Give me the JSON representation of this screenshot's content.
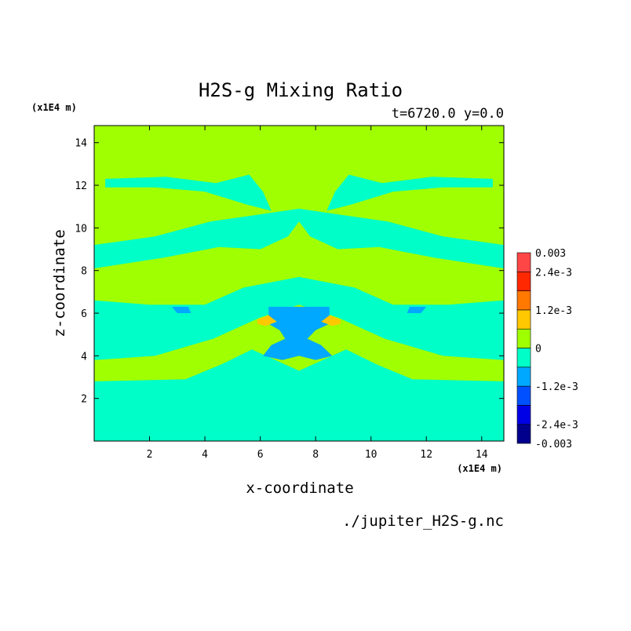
{
  "chart_data": {
    "type": "heatmap",
    "title": "H2S-g Mixing Ratio",
    "subtitle": "t=6720.0 y=0.0",
    "xlabel": "x-coordinate",
    "ylabel": "z-coordinate",
    "x_unit": "(x1E4 m)",
    "y_unit": "(x1E4 m)",
    "source_file": "./jupiter_H2S-g.nc",
    "xlim": [
      0,
      14.8
    ],
    "ylim": [
      0,
      14.8
    ],
    "x_ticks": [
      {
        "value": 2,
        "label": "2"
      },
      {
        "value": 4,
        "label": "4"
      },
      {
        "value": 6,
        "label": "6"
      },
      {
        "value": 8,
        "label": "8"
      },
      {
        "value": 10,
        "label": "10"
      },
      {
        "value": 12,
        "label": "12"
      },
      {
        "value": 14,
        "label": "14"
      }
    ],
    "y_ticks": [
      {
        "value": 2,
        "label": "2"
      },
      {
        "value": 4,
        "label": "4"
      },
      {
        "value": 6,
        "label": "6"
      },
      {
        "value": 8,
        "label": "8"
      },
      {
        "value": 10,
        "label": "10"
      },
      {
        "value": 12,
        "label": "12"
      },
      {
        "value": 14,
        "label": "14"
      }
    ],
    "colorbar": {
      "range": [
        -0.003,
        0.003
      ],
      "bands": [
        {
          "from": -0.003,
          "to": -0.0024,
          "color": "#00008c"
        },
        {
          "from": -0.0024,
          "to": -0.0018,
          "color": "#0000e6"
        },
        {
          "from": -0.0018,
          "to": -0.0012,
          "color": "#0050ff"
        },
        {
          "from": -0.0012,
          "to": -0.0006,
          "color": "#00a8ff"
        },
        {
          "from": -0.0006,
          "to": 0.0,
          "color": "#00ffc8"
        },
        {
          "from": 0.0,
          "to": 0.0006,
          "color": "#a0ff00"
        },
        {
          "from": 0.0006,
          "to": 0.0012,
          "color": "#ffc800"
        },
        {
          "from": 0.0012,
          "to": 0.0018,
          "color": "#ff7800"
        },
        {
          "from": 0.0018,
          "to": 0.0024,
          "color": "#ff2800"
        },
        {
          "from": 0.0024,
          "to": 0.003,
          "color": "#ff4646"
        }
      ],
      "labels": [
        {
          "value": 0.003,
          "label": "0.003"
        },
        {
          "value": 0.0024,
          "label": "2.4e-3"
        },
        {
          "value": 0.0012,
          "label": "1.2e-3"
        },
        {
          "value": 0.0,
          "label": "0"
        },
        {
          "value": -0.0012,
          "label": "-1.2e-3"
        },
        {
          "value": -0.0024,
          "label": "-2.4e-3"
        },
        {
          "value": -0.003,
          "label": "-0.003"
        }
      ]
    },
    "background_color": "#a0ff00",
    "regions": [
      {
        "level": "-6.0e-4..0",
        "color": "#00ffc8",
        "points": [
          [
            0,
            0
          ],
          [
            14.8,
            0
          ],
          [
            14.8,
            2.8
          ],
          [
            11.5,
            2.9
          ],
          [
            10.2,
            3.6
          ],
          [
            9.1,
            4.3
          ],
          [
            7.4,
            3.3
          ],
          [
            5.7,
            4.3
          ],
          [
            4.6,
            3.6
          ],
          [
            3.3,
            2.9
          ],
          [
            0,
            2.8
          ]
        ]
      },
      {
        "level": "-6.0e-4..0",
        "color": "#00ffc8",
        "points": [
          [
            0,
            3.8
          ],
          [
            2.2,
            4.0
          ],
          [
            4.3,
            4.8
          ],
          [
            6.0,
            5.8
          ],
          [
            7.4,
            6.4
          ],
          [
            8.8,
            5.8
          ],
          [
            10.5,
            4.8
          ],
          [
            12.6,
            4.0
          ],
          [
            14.8,
            3.8
          ],
          [
            14.8,
            6.6
          ],
          [
            12.8,
            6.4
          ],
          [
            10.8,
            6.4
          ],
          [
            9.4,
            7.2
          ],
          [
            7.4,
            7.7
          ],
          [
            5.4,
            7.2
          ],
          [
            4.0,
            6.4
          ],
          [
            2.0,
            6.4
          ],
          [
            0,
            6.6
          ]
        ]
      },
      {
        "level": "-6.0e-4..0",
        "color": "#00ffc8",
        "points": [
          [
            0,
            8.1
          ],
          [
            2.5,
            8.6
          ],
          [
            4.5,
            9.1
          ],
          [
            6.0,
            9.0
          ],
          [
            7.0,
            9.6
          ],
          [
            7.4,
            10.3
          ],
          [
            7.8,
            9.6
          ],
          [
            8.8,
            9.0
          ],
          [
            10.3,
            9.1
          ],
          [
            12.3,
            8.6
          ],
          [
            14.8,
            8.1
          ],
          [
            14.8,
            9.2
          ],
          [
            12.6,
            9.6
          ],
          [
            10.6,
            10.3
          ],
          [
            9.0,
            10.6
          ],
          [
            7.4,
            10.9
          ],
          [
            5.8,
            10.6
          ],
          [
            4.2,
            10.3
          ],
          [
            2.2,
            9.6
          ],
          [
            0,
            9.2
          ]
        ]
      },
      {
        "level": "-6.0e-4..0",
        "color": "#00ffc8",
        "points": [
          [
            0.4,
            12.3
          ],
          [
            2.6,
            12.4
          ],
          [
            4.4,
            12.1
          ],
          [
            5.6,
            12.5
          ],
          [
            6.1,
            11.7
          ],
          [
            6.4,
            10.8
          ],
          [
            5.5,
            11.1
          ],
          [
            4.0,
            11.7
          ],
          [
            2.2,
            11.9
          ],
          [
            0.4,
            11.9
          ]
        ]
      },
      {
        "level": "-6.0e-4..0",
        "color": "#00ffc8",
        "points": [
          [
            14.4,
            12.3
          ],
          [
            12.2,
            12.4
          ],
          [
            10.4,
            12.1
          ],
          [
            9.2,
            12.5
          ],
          [
            8.7,
            11.7
          ],
          [
            8.4,
            10.8
          ],
          [
            9.3,
            11.1
          ],
          [
            10.8,
            11.7
          ],
          [
            12.6,
            11.9
          ],
          [
            14.4,
            11.9
          ]
        ]
      },
      {
        "level": "-1.2e-3..-6.0e-4",
        "color": "#00a8ff",
        "points": [
          [
            6.3,
            6.3
          ],
          [
            8.5,
            6.3
          ],
          [
            8.5,
            5.5
          ],
          [
            8.0,
            5.2
          ],
          [
            7.7,
            4.8
          ],
          [
            8.2,
            4.5
          ],
          [
            8.6,
            4.0
          ],
          [
            8.0,
            3.8
          ],
          [
            7.4,
            4.0
          ],
          [
            6.8,
            3.8
          ],
          [
            6.1,
            4.0
          ],
          [
            6.4,
            4.5
          ],
          [
            6.9,
            4.8
          ],
          [
            6.7,
            5.2
          ],
          [
            6.3,
            5.5
          ]
        ]
      },
      {
        "level": "-1.2e-3..-6.0e-4",
        "color": "#00a8ff",
        "points": [
          [
            2.8,
            6.3
          ],
          [
            3.4,
            6.3
          ],
          [
            3.5,
            6.0
          ],
          [
            3.0,
            6.0
          ]
        ]
      },
      {
        "level": "-1.2e-3..-6.0e-4",
        "color": "#00a8ff",
        "points": [
          [
            11.4,
            6.3
          ],
          [
            12.0,
            6.3
          ],
          [
            11.8,
            6.0
          ],
          [
            11.3,
            6.0
          ]
        ]
      },
      {
        "level": "6.0e-4..1.2e-3",
        "color": "#ffc800",
        "points": [
          [
            5.9,
            5.7
          ],
          [
            6.3,
            5.9
          ],
          [
            6.6,
            5.6
          ],
          [
            6.2,
            5.4
          ],
          [
            5.9,
            5.5
          ]
        ]
      },
      {
        "level": "6.0e-4..1.2e-3",
        "color": "#ffc800",
        "points": [
          [
            8.9,
            5.7
          ],
          [
            8.5,
            5.9
          ],
          [
            8.2,
            5.6
          ],
          [
            8.6,
            5.4
          ],
          [
            8.9,
            5.5
          ]
        ]
      }
    ]
  }
}
